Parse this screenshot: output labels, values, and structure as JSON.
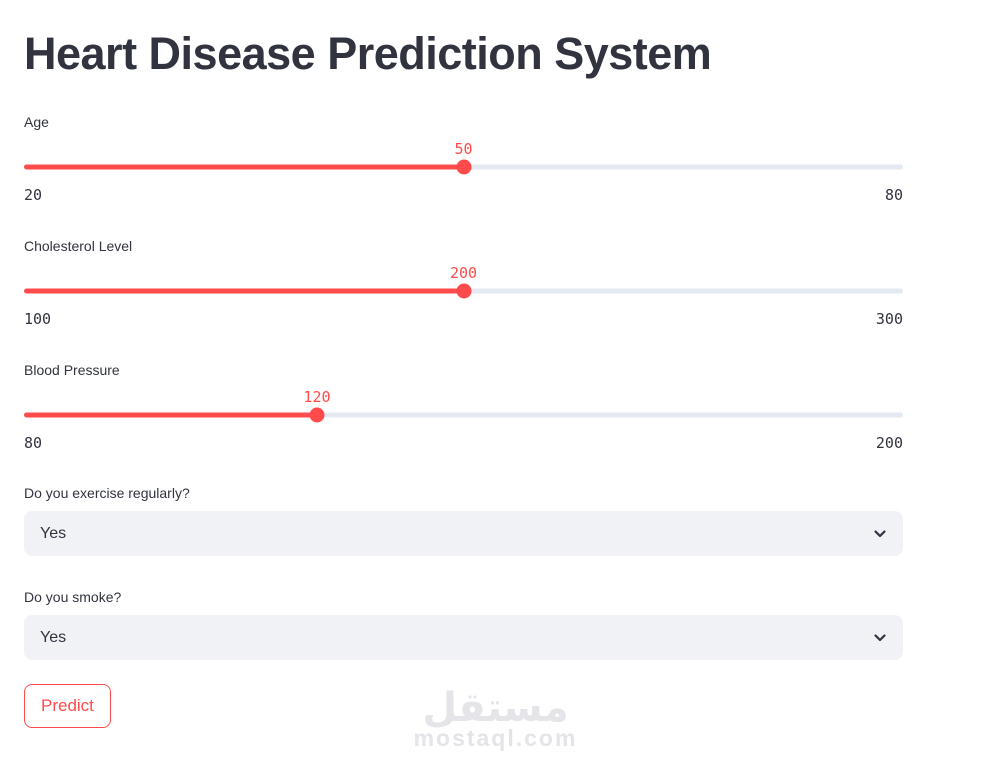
{
  "app": {
    "title": "Heart Disease Prediction System"
  },
  "colors": {
    "primary": "#FF4B4B",
    "text": "#31333F",
    "track_bg": "#E4E8F0",
    "select_bg": "#F0F2F6",
    "watermark": "#E4E4E9"
  },
  "sliders": [
    {
      "label": "Age",
      "value": "50",
      "min": "20",
      "max": "80",
      "percent": 50
    },
    {
      "label": "Cholesterol Level",
      "value": "200",
      "min": "100",
      "max": "300",
      "percent": 50
    },
    {
      "label": "Blood Pressure",
      "value": "120",
      "min": "80",
      "max": "200",
      "percent": 33.33
    }
  ],
  "selects": [
    {
      "label": "Do you exercise regularly?",
      "value": "Yes",
      "icon": "chevron-down"
    },
    {
      "label": "Do you smoke?",
      "value": "Yes",
      "icon": "chevron-down"
    }
  ],
  "button": {
    "label": "Predict"
  },
  "watermark": {
    "arabic": "مستقل",
    "domain": "mostaql.com"
  }
}
